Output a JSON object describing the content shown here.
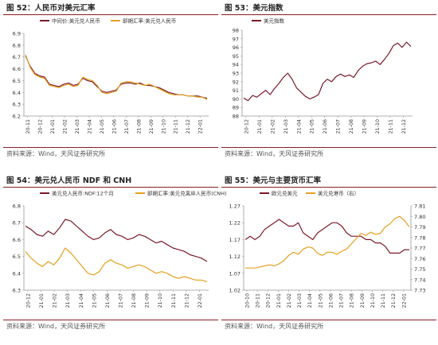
{
  "panels": [
    {
      "title": "图 52：人民币对美元汇率",
      "source": "资料来源：Wind，天风证券研究所",
      "chart_data": {
        "type": "line",
        "title": "图 52：人民币对美元汇率",
        "ylim": [
          6.2,
          6.9
        ],
        "yticks": [
          6.2,
          6.3,
          6.4,
          6.5,
          6.6,
          6.7,
          6.8,
          6.9
        ],
        "xticks": [
          "20-11",
          "20-12",
          "21-01",
          "21-02",
          "21-03",
          "21-04",
          "21-05",
          "21-06",
          "21-07",
          "21-08",
          "21-09",
          "21-10",
          "21-11",
          "21-12",
          "22-01"
        ],
        "legend_position": "top",
        "grid": false,
        "series": [
          {
            "name": "中间价:美元兑人民币",
            "color": "#7b1b2a",
            "values": [
              6.71,
              6.62,
              6.56,
              6.54,
              6.53,
              6.47,
              6.46,
              6.45,
              6.47,
              6.48,
              6.46,
              6.47,
              6.52,
              6.5,
              6.49,
              6.45,
              6.41,
              6.4,
              6.41,
              6.42,
              6.47,
              6.48,
              6.48,
              6.47,
              6.48,
              6.46,
              6.46,
              6.45,
              6.44,
              6.42,
              6.4,
              6.39,
              6.38,
              6.38,
              6.37,
              6.37,
              6.37,
              6.36,
              6.35
            ]
          },
          {
            "name": "即期汇率:美元兑人民币",
            "color": "#e8a020",
            "values": [
              6.72,
              6.61,
              6.55,
              6.53,
              6.52,
              6.46,
              6.45,
              6.44,
              6.46,
              6.47,
              6.45,
              6.46,
              6.53,
              6.51,
              6.5,
              6.46,
              6.4,
              6.39,
              6.4,
              6.41,
              6.48,
              6.49,
              6.49,
              6.48,
              6.47,
              6.46,
              6.47,
              6.45,
              6.43,
              6.41,
              6.39,
              6.38,
              6.38,
              6.38,
              6.37,
              6.37,
              6.36,
              6.36,
              6.34
            ]
          }
        ]
      }
    },
    {
      "title": "图 53：美元指数",
      "source": "资料来源：Wind，天风证券研究所",
      "chart_data": {
        "type": "line",
        "title": "图 53：美元指数",
        "ylim": [
          88,
          98
        ],
        "yticks": [
          88,
          89,
          90,
          91,
          92,
          93,
          94,
          95,
          96,
          97,
          98
        ],
        "xticks": [
          "20-12",
          "21-01",
          "21-02",
          "21-03",
          "21-04",
          "21-05",
          "21-06",
          "21-07",
          "21-08",
          "21-09",
          "21-10",
          "21-11",
          "21-12"
        ],
        "legend_position": "top-left",
        "grid": false,
        "series": [
          {
            "name": "美元指数",
            "color": "#7b1b2a",
            "values": [
              90.1,
              89.8,
              90.4,
              90.2,
              90.6,
              91.0,
              90.5,
              91.2,
              91.8,
              92.5,
              93.0,
              92.3,
              91.3,
              90.8,
              90.3,
              90.0,
              90.2,
              90.5,
              91.8,
              92.3,
              92.0,
              92.6,
              92.9,
              92.6,
              92.8,
              92.5,
              93.3,
              93.8,
              94.1,
              94.2,
              94.4,
              94.0,
              94.6,
              95.3,
              96.2,
              96.5,
              96.0,
              96.6,
              96.1
            ]
          }
        ]
      }
    },
    {
      "title": "图 54：美元兑人民币 NDF 和 CNH",
      "source": "资料来源：Wind，天风证券研究所",
      "chart_data": {
        "type": "line",
        "title": "图 54：美元兑人民币 NDF 和 CNH",
        "ylim": [
          6.3,
          6.8
        ],
        "yticks": [
          6.3,
          6.4,
          6.5,
          6.6,
          6.7,
          6.8
        ],
        "xticks": [
          "20-12",
          "21-01",
          "21-02",
          "21-03",
          "21-04",
          "21-05",
          "21-06",
          "21-07",
          "21-08",
          "21-09",
          "21-10",
          "21-11",
          "21-12",
          "22-01"
        ],
        "legend_position": "top",
        "grid": false,
        "series": [
          {
            "name": "美元兑人民币:NDF:12个月",
            "color": "#7b1b2a",
            "values": [
              6.68,
              6.66,
              6.63,
              6.62,
              6.65,
              6.63,
              6.67,
              6.72,
              6.71,
              6.68,
              6.65,
              6.62,
              6.6,
              6.61,
              6.64,
              6.66,
              6.63,
              6.62,
              6.6,
              6.61,
              6.63,
              6.62,
              6.6,
              6.58,
              6.59,
              6.57,
              6.55,
              6.54,
              6.53,
              6.51,
              6.5,
              6.49,
              6.47
            ]
          },
          {
            "name": "即期汇率:美元兑离岸人民币(CNH)",
            "color": "#e8a020",
            "values": [
              6.53,
              6.49,
              6.46,
              6.44,
              6.47,
              6.45,
              6.49,
              6.55,
              6.52,
              6.48,
              6.44,
              6.4,
              6.39,
              6.41,
              6.46,
              6.48,
              6.46,
              6.45,
              6.43,
              6.44,
              6.45,
              6.44,
              6.42,
              6.4,
              6.41,
              6.4,
              6.38,
              6.37,
              6.38,
              6.37,
              6.36,
              6.36,
              6.35
            ]
          }
        ]
      }
    },
    {
      "title": "图 55：美元与主要货币汇率",
      "source": "资料来源：Wind，天风证券研究所",
      "chart_data": {
        "type": "line",
        "title": "图 55：美元与主要货币汇率",
        "ylim": [
          1.02,
          1.27
        ],
        "yticks": [
          1.02,
          1.07,
          1.12,
          1.17,
          1.22,
          1.27
        ],
        "y2lim": [
          7.73,
          7.81
        ],
        "y2ticks": [
          7.73,
          7.74,
          7.75,
          7.76,
          7.77,
          7.78,
          7.79,
          7.8,
          7.81
        ],
        "xticks": [
          "20-10",
          "20-11",
          "20-12",
          "21-01",
          "21-02",
          "21-03",
          "21-04",
          "21-05",
          "21-06",
          "21-07",
          "21-08",
          "21-09",
          "21-10",
          "21-11",
          "21-12",
          "22-01"
        ],
        "legend_position": "top",
        "grid": false,
        "series": [
          {
            "name": "欧元兑美元",
            "color": "#7b1b2a",
            "axis": "left",
            "values": [
              1.17,
              1.18,
              1.17,
              1.18,
              1.2,
              1.21,
              1.22,
              1.23,
              1.22,
              1.21,
              1.21,
              1.22,
              1.19,
              1.18,
              1.17,
              1.19,
              1.2,
              1.21,
              1.22,
              1.22,
              1.21,
              1.19,
              1.18,
              1.18,
              1.18,
              1.17,
              1.17,
              1.16,
              1.16,
              1.15,
              1.13,
              1.13,
              1.13,
              1.14,
              1.14
            ]
          },
          {
            "name": "美元兑港币（右）",
            "color": "#e8a020",
            "axis": "right",
            "values": [
              7.751,
              7.751,
              7.751,
              7.752,
              7.753,
              7.754,
              7.753,
              7.755,
              7.758,
              7.763,
              7.766,
              7.764,
              7.769,
              7.771,
              7.77,
              7.765,
              7.763,
              7.766,
              7.766,
              7.764,
              7.767,
              7.769,
              7.774,
              7.779,
              7.784,
              7.782,
              7.785,
              7.783,
              7.784,
              7.79,
              7.793,
              7.798,
              7.8,
              7.796,
              7.79
            ]
          }
        ]
      }
    }
  ]
}
